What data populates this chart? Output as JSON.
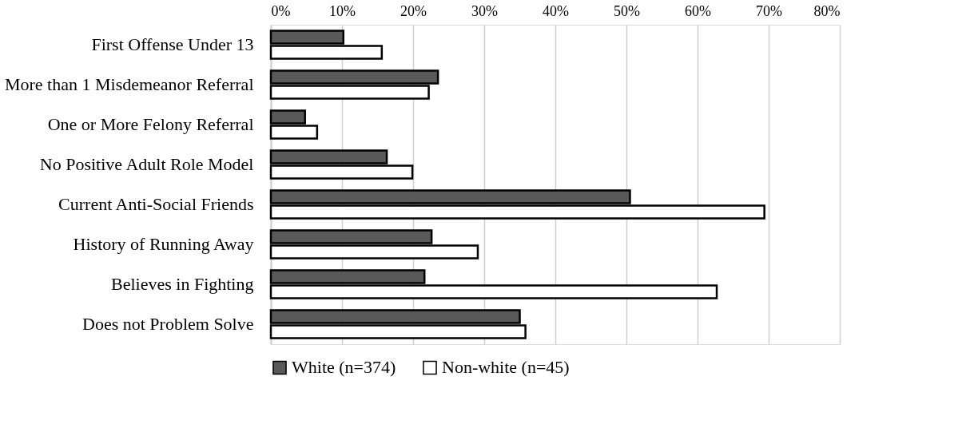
{
  "chart_data": {
    "type": "bar",
    "orientation": "horizontal",
    "categories": [
      "First Offense Under 13",
      "More than 1 Misdemeanor Referral",
      "One or More Felony Referral",
      "No Positive Adult Role Model",
      "Current Anti-Social Friends",
      "History of Running Away",
      "Believes in Fighting",
      "Does not Problem Solve"
    ],
    "series": [
      {
        "name": "White (n=374)",
        "color": "#595959",
        "values": [
          10.2,
          23.5,
          4.8,
          16.3,
          50.5,
          22.6,
          21.6,
          35.0
        ]
      },
      {
        "name": "Non-white (n=45)",
        "color": "#ffffff",
        "values": [
          15.6,
          22.2,
          6.5,
          19.9,
          69.4,
          29.1,
          62.7,
          35.8
        ]
      }
    ],
    "xlim": [
      0,
      80
    ],
    "xticks": [
      {
        "value": 0,
        "label": "0%"
      },
      {
        "value": 10,
        "label": "10%"
      },
      {
        "value": 20,
        "label": "20%"
      },
      {
        "value": 30,
        "label": "30%"
      },
      {
        "value": 40,
        "label": "40%"
      },
      {
        "value": 50,
        "label": "50%"
      },
      {
        "value": 60,
        "label": "60%"
      },
      {
        "value": 70,
        "label": "70%"
      },
      {
        "value": 80,
        "label": "80%"
      }
    ],
    "grid": "x",
    "legend": "bottom"
  }
}
